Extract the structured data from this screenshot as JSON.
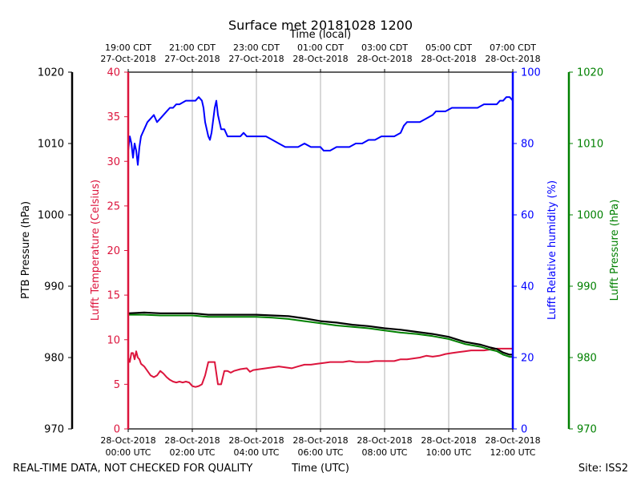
{
  "chart_data": {
    "type": "line",
    "title": "Surface met 20181028 1200",
    "top_axis_label": "Time (local)",
    "top_ticks": [
      {
        "line1": "19:00 CDT",
        "line2": "27-Oct-2018",
        "hour": 0
      },
      {
        "line1": "21:00 CDT",
        "line2": "27-Oct-2018",
        "hour": 2
      },
      {
        "line1": "23:00 CDT",
        "line2": "27-Oct-2018",
        "hour": 4
      },
      {
        "line1": "01:00 CDT",
        "line2": "28-Oct-2018",
        "hour": 6
      },
      {
        "line1": "03:00 CDT",
        "line2": "28-Oct-2018",
        "hour": 8
      },
      {
        "line1": "05:00 CDT",
        "line2": "28-Oct-2018",
        "hour": 10
      },
      {
        "line1": "07:00 CDT",
        "line2": "28-Oct-2018",
        "hour": 12
      }
    ],
    "xlabel": "Time (UTC)",
    "x_ticks": [
      {
        "line1": "28-Oct-2018",
        "line2": "00:00 UTC",
        "hour": 0
      },
      {
        "line1": "28-Oct-2018",
        "line2": "02:00 UTC",
        "hour": 2
      },
      {
        "line1": "28-Oct-2018",
        "line2": "04:00 UTC",
        "hour": 4
      },
      {
        "line1": "28-Oct-2018",
        "line2": "06:00 UTC",
        "hour": 6
      },
      {
        "line1": "28-Oct-2018",
        "line2": "08:00 UTC",
        "hour": 8
      },
      {
        "line1": "28-Oct-2018",
        "line2": "10:00 UTC",
        "hour": 10
      },
      {
        "line1": "28-Oct-2018",
        "line2": "12:00 UTC",
        "hour": 12
      }
    ],
    "xlim": [
      0,
      12
    ],
    "grid": "vertical",
    "axes": {
      "ptb_pressure": {
        "label": "PTB Pressure (hPa)",
        "ylim": [
          970,
          1020
        ],
        "ticks": [
          970,
          980,
          990,
          1000,
          1010,
          1020
        ],
        "color": "#000000"
      },
      "temperature": {
        "label": "Lufft Temperature (Celsius)",
        "ylim": [
          0,
          40
        ],
        "ticks": [
          0,
          5,
          10,
          15,
          20,
          25,
          30,
          35,
          40
        ],
        "color": "#dc143c"
      },
      "humidity": {
        "label": "Lufft Relative humidity (%)",
        "ylim": [
          0,
          100
        ],
        "ticks": [
          0,
          20,
          40,
          60,
          80,
          100
        ],
        "color": "#0000ff"
      },
      "lufft_pressure": {
        "label": "Lufft Pressure (hPa)",
        "ylim": [
          970,
          1020
        ],
        "ticks": [
          970,
          980,
          990,
          1000,
          1010,
          1020
        ],
        "color": "#008000"
      }
    },
    "series": [
      {
        "name": "Lufft Relative humidity (%)",
        "axis": "humidity",
        "color": "#0000ff",
        "points": [
          [
            0.0,
            78
          ],
          [
            0.05,
            82
          ],
          [
            0.1,
            80
          ],
          [
            0.15,
            76
          ],
          [
            0.2,
            80
          ],
          [
            0.25,
            78
          ],
          [
            0.3,
            74
          ],
          [
            0.35,
            79
          ],
          [
            0.4,
            82
          ],
          [
            0.5,
            84
          ],
          [
            0.6,
            86
          ],
          [
            0.7,
            87
          ],
          [
            0.8,
            88
          ],
          [
            0.85,
            87
          ],
          [
            0.9,
            86
          ],
          [
            1.0,
            87
          ],
          [
            1.1,
            88
          ],
          [
            1.2,
            89
          ],
          [
            1.3,
            90
          ],
          [
            1.4,
            90
          ],
          [
            1.5,
            91
          ],
          [
            1.6,
            91
          ],
          [
            1.8,
            92
          ],
          [
            1.9,
            92
          ],
          [
            2.0,
            92
          ],
          [
            2.1,
            92
          ],
          [
            2.2,
            93
          ],
          [
            2.3,
            92
          ],
          [
            2.35,
            90
          ],
          [
            2.4,
            86
          ],
          [
            2.5,
            82
          ],
          [
            2.55,
            81
          ],
          [
            2.6,
            83
          ],
          [
            2.7,
            90
          ],
          [
            2.75,
            92
          ],
          [
            2.8,
            88
          ],
          [
            2.9,
            84
          ],
          [
            3.0,
            84
          ],
          [
            3.1,
            82
          ],
          [
            3.2,
            82
          ],
          [
            3.5,
            82
          ],
          [
            3.6,
            83
          ],
          [
            3.7,
            82
          ],
          [
            3.9,
            82
          ],
          [
            4.1,
            82
          ],
          [
            4.3,
            82
          ],
          [
            4.5,
            81
          ],
          [
            4.7,
            80
          ],
          [
            4.9,
            79
          ],
          [
            5.1,
            79
          ],
          [
            5.3,
            79
          ],
          [
            5.5,
            80
          ],
          [
            5.7,
            79
          ],
          [
            5.9,
            79
          ],
          [
            6.0,
            79
          ],
          [
            6.1,
            78
          ],
          [
            6.3,
            78
          ],
          [
            6.5,
            79
          ],
          [
            6.7,
            79
          ],
          [
            6.9,
            79
          ],
          [
            7.1,
            80
          ],
          [
            7.3,
            80
          ],
          [
            7.5,
            81
          ],
          [
            7.7,
            81
          ],
          [
            7.9,
            82
          ],
          [
            8.1,
            82
          ],
          [
            8.3,
            82
          ],
          [
            8.5,
            83
          ],
          [
            8.6,
            85
          ],
          [
            8.7,
            86
          ],
          [
            8.9,
            86
          ],
          [
            9.1,
            86
          ],
          [
            9.3,
            87
          ],
          [
            9.5,
            88
          ],
          [
            9.6,
            89
          ],
          [
            9.7,
            89
          ],
          [
            9.9,
            89
          ],
          [
            10.1,
            90
          ],
          [
            10.3,
            90
          ],
          [
            10.5,
            90
          ],
          [
            10.7,
            90
          ],
          [
            10.9,
            90
          ],
          [
            11.1,
            91
          ],
          [
            11.3,
            91
          ],
          [
            11.5,
            91
          ],
          [
            11.6,
            92
          ],
          [
            11.7,
            92
          ],
          [
            11.8,
            93
          ],
          [
            11.9,
            93
          ],
          [
            12.0,
            92
          ]
        ]
      },
      {
        "name": "Lufft Temperature (Celsius)",
        "axis": "temperature",
        "color": "#dc143c",
        "points": [
          [
            0.0,
            8.0
          ],
          [
            0.05,
            7.5
          ],
          [
            0.1,
            8.5
          ],
          [
            0.15,
            8.5
          ],
          [
            0.2,
            7.8
          ],
          [
            0.25,
            8.7
          ],
          [
            0.3,
            8.0
          ],
          [
            0.35,
            7.8
          ],
          [
            0.4,
            7.3
          ],
          [
            0.5,
            7.0
          ],
          [
            0.6,
            6.5
          ],
          [
            0.7,
            6.0
          ],
          [
            0.8,
            5.8
          ],
          [
            0.9,
            6.0
          ],
          [
            1.0,
            6.5
          ],
          [
            1.1,
            6.2
          ],
          [
            1.2,
            5.8
          ],
          [
            1.3,
            5.5
          ],
          [
            1.4,
            5.3
          ],
          [
            1.5,
            5.2
          ],
          [
            1.6,
            5.3
          ],
          [
            1.7,
            5.2
          ],
          [
            1.8,
            5.3
          ],
          [
            1.9,
            5.2
          ],
          [
            2.0,
            4.8
          ],
          [
            2.1,
            4.7
          ],
          [
            2.2,
            4.8
          ],
          [
            2.3,
            5.0
          ],
          [
            2.4,
            6.0
          ],
          [
            2.5,
            7.5
          ],
          [
            2.6,
            7.5
          ],
          [
            2.7,
            7.5
          ],
          [
            2.8,
            5.0
          ],
          [
            2.9,
            5.0
          ],
          [
            3.0,
            6.5
          ],
          [
            3.1,
            6.5
          ],
          [
            3.2,
            6.3
          ],
          [
            3.3,
            6.5
          ],
          [
            3.5,
            6.7
          ],
          [
            3.7,
            6.8
          ],
          [
            3.8,
            6.4
          ],
          [
            3.9,
            6.6
          ],
          [
            4.1,
            6.7
          ],
          [
            4.3,
            6.8
          ],
          [
            4.5,
            6.9
          ],
          [
            4.7,
            7.0
          ],
          [
            4.9,
            6.9
          ],
          [
            5.1,
            6.8
          ],
          [
            5.3,
            7.0
          ],
          [
            5.5,
            7.2
          ],
          [
            5.7,
            7.2
          ],
          [
            5.9,
            7.3
          ],
          [
            6.1,
            7.4
          ],
          [
            6.3,
            7.5
          ],
          [
            6.5,
            7.5
          ],
          [
            6.7,
            7.5
          ],
          [
            6.9,
            7.6
          ],
          [
            7.1,
            7.5
          ],
          [
            7.3,
            7.5
          ],
          [
            7.5,
            7.5
          ],
          [
            7.7,
            7.6
          ],
          [
            7.9,
            7.6
          ],
          [
            8.1,
            7.6
          ],
          [
            8.3,
            7.6
          ],
          [
            8.5,
            7.8
          ],
          [
            8.7,
            7.8
          ],
          [
            8.9,
            7.9
          ],
          [
            9.1,
            8.0
          ],
          [
            9.3,
            8.2
          ],
          [
            9.5,
            8.1
          ],
          [
            9.7,
            8.2
          ],
          [
            9.9,
            8.4
          ],
          [
            10.1,
            8.5
          ],
          [
            10.3,
            8.6
          ],
          [
            10.5,
            8.7
          ],
          [
            10.7,
            8.8
          ],
          [
            10.9,
            8.8
          ],
          [
            11.1,
            8.8
          ],
          [
            11.3,
            8.9
          ],
          [
            11.5,
            9.0
          ],
          [
            11.7,
            9.0
          ],
          [
            11.9,
            9.0
          ],
          [
            12.0,
            9.0
          ]
        ]
      },
      {
        "name": "PTB Pressure (hPa)",
        "axis": "ptb_pressure",
        "color": "#000000",
        "points": [
          [
            0.0,
            986.2
          ],
          [
            0.5,
            986.3
          ],
          [
            1.0,
            986.2
          ],
          [
            1.5,
            986.2
          ],
          [
            2.0,
            986.2
          ],
          [
            2.5,
            986.0
          ],
          [
            3.0,
            986.0
          ],
          [
            3.5,
            986.0
          ],
          [
            4.0,
            986.0
          ],
          [
            4.5,
            985.9
          ],
          [
            5.0,
            985.8
          ],
          [
            5.5,
            985.5
          ],
          [
            6.0,
            985.1
          ],
          [
            6.5,
            984.9
          ],
          [
            7.0,
            984.6
          ],
          [
            7.5,
            984.4
          ],
          [
            8.0,
            984.1
          ],
          [
            8.5,
            983.9
          ],
          [
            9.0,
            983.6
          ],
          [
            9.5,
            983.3
          ],
          [
            10.0,
            982.9
          ],
          [
            10.5,
            982.2
          ],
          [
            11.0,
            981.8
          ],
          [
            11.3,
            981.4
          ],
          [
            11.5,
            981.2
          ],
          [
            11.7,
            980.7
          ],
          [
            11.9,
            980.4
          ],
          [
            12.0,
            980.4
          ]
        ]
      },
      {
        "name": "Lufft Pressure (hPa)",
        "axis": "lufft_pressure",
        "color": "#008000",
        "points": [
          [
            0.0,
            986.0
          ],
          [
            0.5,
            986.0
          ],
          [
            1.0,
            985.9
          ],
          [
            1.5,
            985.9
          ],
          [
            2.0,
            985.9
          ],
          [
            2.5,
            985.7
          ],
          [
            3.0,
            985.7
          ],
          [
            3.5,
            985.7
          ],
          [
            4.0,
            985.7
          ],
          [
            4.5,
            985.6
          ],
          [
            5.0,
            985.4
          ],
          [
            5.5,
            985.1
          ],
          [
            6.0,
            984.8
          ],
          [
            6.5,
            984.5
          ],
          [
            7.0,
            984.3
          ],
          [
            7.5,
            984.1
          ],
          [
            8.0,
            983.8
          ],
          [
            8.5,
            983.5
          ],
          [
            9.0,
            983.3
          ],
          [
            9.5,
            983.0
          ],
          [
            10.0,
            982.6
          ],
          [
            10.5,
            981.9
          ],
          [
            11.0,
            981.5
          ],
          [
            11.3,
            981.1
          ],
          [
            11.5,
            980.9
          ],
          [
            11.7,
            980.4
          ],
          [
            11.9,
            980.1
          ],
          [
            12.0,
            980.1
          ]
        ]
      }
    ]
  },
  "footer": {
    "disclaimer": "REAL-TIME DATA, NOT CHECKED FOR QUALITY",
    "site": "Site: ISS2"
  }
}
